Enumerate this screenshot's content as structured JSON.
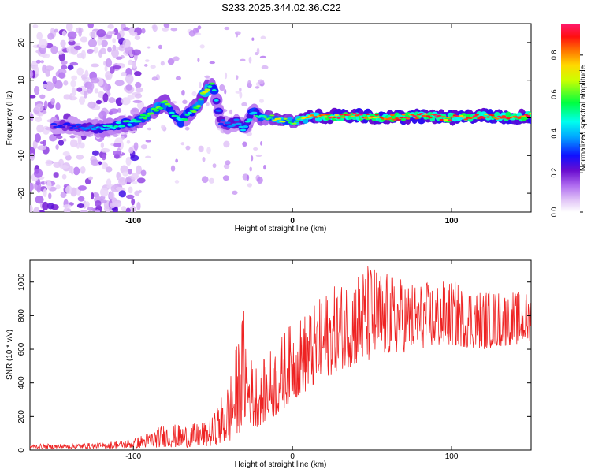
{
  "title": "S233.2025.344.02.36.C22",
  "chart_data": [
    {
      "type": "heatmap",
      "name": "spectrogram",
      "xlabel": "Height of straight line (km)",
      "ylabel": "Frequency (Hz)",
      "xlim": [
        -165,
        150
      ],
      "ylim": [
        -25,
        25
      ],
      "xticks": [
        -100,
        0,
        100
      ],
      "yticks": [
        -20,
        -10,
        0,
        10,
        20
      ],
      "colorbar": {
        "label": "Normalized spectral amplitude",
        "range": [
          0.0,
          0.96
        ],
        "ticks": [
          0.0,
          0.2,
          0.4,
          0.6,
          0.8
        ],
        "colors": [
          "#ffffff",
          "#d9b8f5",
          "#8a2be2",
          "#0000ff",
          "#00bfff",
          "#00ffff",
          "#00ff00",
          "#ffff00",
          "#ff7f00",
          "#ff0000",
          "#ff1493"
        ]
      },
      "ridge": {
        "x": [
          -140,
          -120,
          -100,
          -90,
          -80,
          -70,
          -60,
          -55,
          -50,
          -45,
          -40,
          -35,
          -30,
          -25,
          -20,
          -10,
          0,
          10,
          20,
          40,
          60,
          80,
          100,
          120,
          140,
          150
        ],
        "y": [
          -2,
          -3,
          -1,
          1,
          4,
          -1,
          3,
          7,
          9,
          -1,
          -2,
          -1,
          -3,
          2,
          0,
          0,
          -1,
          0,
          0.5,
          0.5,
          0,
          0.5,
          0,
          0.5,
          0.3,
          0.5
        ],
        "amplitude": [
          0.3,
          0.45,
          0.55,
          0.6,
          0.6,
          0.5,
          0.6,
          0.7,
          0.55,
          0.35,
          0.35,
          0.4,
          0.45,
          0.5,
          0.55,
          0.7,
          0.6,
          0.8,
          0.9,
          0.92,
          0.9,
          0.92,
          0.9,
          0.92,
          0.9,
          0.9
        ]
      }
    },
    {
      "type": "line",
      "name": "snr",
      "xlabel": "Height of straight line (km)",
      "ylabel": "SNR (10 * v/v)",
      "xlim": [
        -165,
        150
      ],
      "ylim": [
        0,
        1130
      ],
      "xticks": [
        -100,
        0,
        100
      ],
      "yticks": [
        0,
        200,
        400,
        600,
        800,
        1000
      ],
      "color": "#ee2222",
      "envelope": {
        "x": [
          -165,
          -120,
          -100,
          -90,
          -80,
          -70,
          -60,
          -50,
          -45,
          -40,
          -35,
          -30,
          -28,
          -25,
          -20,
          -15,
          -10,
          -5,
          0,
          5,
          10,
          15,
          20,
          30,
          40,
          50,
          60,
          80,
          100,
          120,
          150
        ],
        "low": [
          8,
          10,
          12,
          14,
          18,
          15,
          18,
          22,
          30,
          40,
          80,
          150,
          200,
          120,
          150,
          180,
          200,
          250,
          300,
          320,
          350,
          380,
          420,
          480,
          500,
          520,
          560,
          600,
          620,
          600,
          640
        ],
        "high": [
          35,
          45,
          70,
          110,
          160,
          150,
          160,
          200,
          320,
          420,
          640,
          880,
          560,
          560,
          500,
          600,
          640,
          720,
          760,
          800,
          840,
          880,
          940,
          1000,
          1080,
          1120,
          1050,
          1000,
          1010,
          960,
          940
        ]
      }
    }
  ]
}
